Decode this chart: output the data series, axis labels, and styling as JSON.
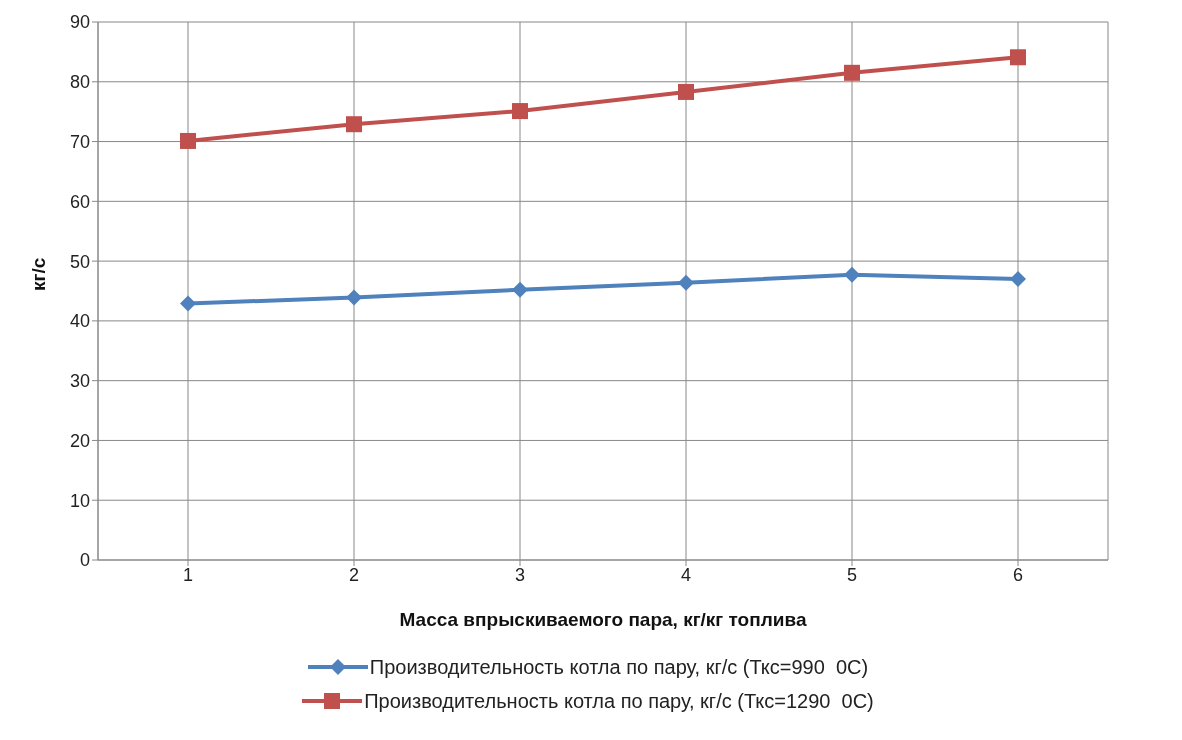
{
  "chart_data": {
    "type": "line",
    "xlabel": "Масса впрыскиваемого пара, кг/кг топлива",
    "ylabel": "кг/с",
    "categories": [
      "1",
      "2",
      "3",
      "4",
      "5",
      "6"
    ],
    "series": [
      {
        "name": "Производительность котла по пару, кг/с (Ткс=990  0С)",
        "color": "#4f81bd",
        "marker": "diamond",
        "values": [
          42.9,
          43.9,
          45.2,
          46.4,
          47.7,
          47.0
        ]
      },
      {
        "name": "Производительность котла по пару, кг/с (Ткс=1290  0С)",
        "color": "#c0504d",
        "marker": "square",
        "values": [
          70.1,
          72.9,
          75.1,
          78.3,
          81.5,
          84.1
        ]
      }
    ],
    "ylim": [
      0,
      90
    ],
    "yticks": [
      0,
      10,
      20,
      30,
      40,
      50,
      60,
      70,
      80,
      90
    ],
    "grid": true,
    "legend": "bottom",
    "line_style": "solid"
  }
}
